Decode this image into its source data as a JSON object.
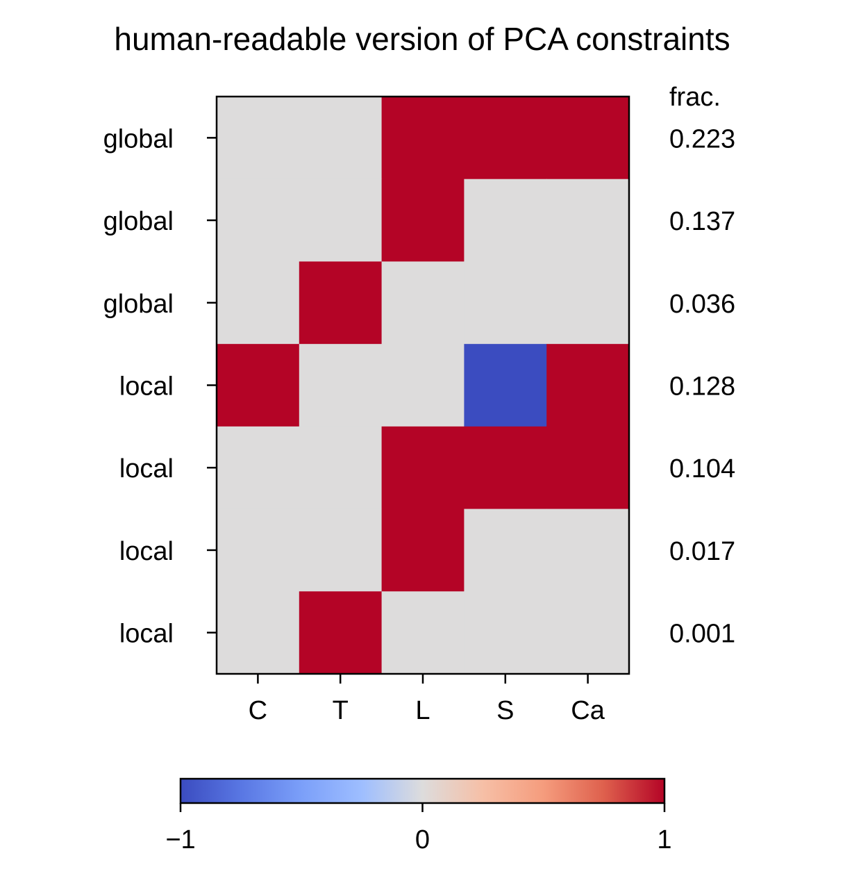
{
  "chart_data": {
    "type": "heatmap",
    "title": "human-readable version of PCA constraints",
    "columns": [
      "C",
      "T",
      "L",
      "S",
      "Ca"
    ],
    "rows": [
      "global",
      "global",
      "global",
      "local",
      "local",
      "local",
      "local"
    ],
    "values": [
      [
        0,
        0,
        1,
        1,
        1
      ],
      [
        0,
        0,
        1,
        0,
        0
      ],
      [
        0,
        1,
        0,
        0,
        0
      ],
      [
        1,
        0,
        0,
        -1,
        1
      ],
      [
        0,
        0,
        1,
        1,
        1
      ],
      [
        0,
        0,
        1,
        0,
        0
      ],
      [
        0,
        1,
        0,
        0,
        0
      ]
    ],
    "frac_header": "frac.",
    "frac_values": [
      "0.223",
      "0.137",
      "0.036",
      "0.128",
      "0.104",
      "0.017",
      "0.001"
    ],
    "colormap": "coolwarm",
    "colors": {
      "low": "#3b4cc0",
      "mid": "#dddcdc",
      "high": "#b40426"
    },
    "colorbar": {
      "range": [
        -1,
        1
      ],
      "tick_values": [
        -1,
        0,
        1
      ],
      "tick_labels": [
        "−1",
        "0",
        "1"
      ],
      "orientation": "horizontal",
      "placement": "bottom"
    }
  }
}
